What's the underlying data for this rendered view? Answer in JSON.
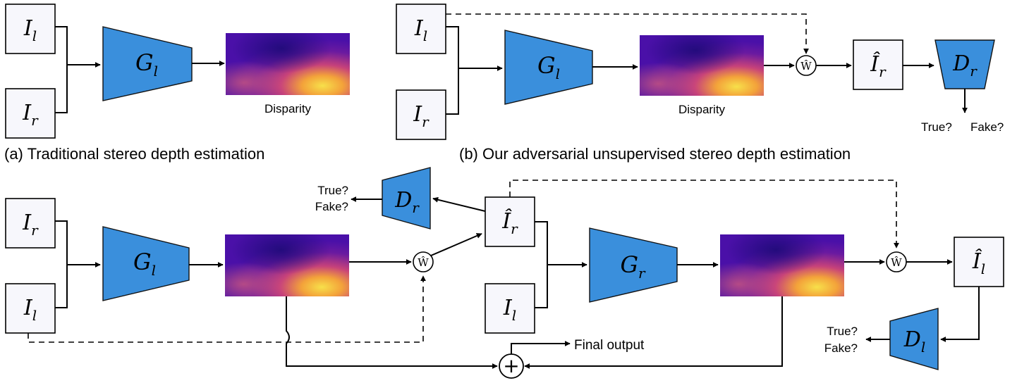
{
  "colors": {
    "network": "#3a8fdc",
    "box_fill": "#f7f7fc"
  },
  "panel_a": {
    "caption": "(a) Traditional stereo depth estimation",
    "input_left": {
      "sym": "I",
      "sub": "l"
    },
    "input_right": {
      "sym": "I",
      "sub": "r"
    },
    "generator": {
      "sym": "G",
      "sub": "l"
    },
    "disparity_label": "Disparity"
  },
  "panel_b": {
    "caption": "(b) Our adversarial unsupervised stereo depth estimation",
    "input_left": {
      "sym": "I",
      "sub": "l"
    },
    "input_right": {
      "sym": "I",
      "sub": "r"
    },
    "generator": {
      "sym": "G",
      "sub": "l"
    },
    "disparity_label": "Disparity",
    "warp": "Ŵ",
    "reconstructed": {
      "sym": "Î",
      "sub": "r"
    },
    "discriminator": {
      "sym": "D",
      "sub": "r"
    },
    "output_true": "True?",
    "output_fake": "Fake?"
  },
  "panel_c": {
    "input_right": {
      "sym": "I",
      "sub": "r"
    },
    "input_left": {
      "sym": "I",
      "sub": "l"
    },
    "generator_left": {
      "sym": "G",
      "sub": "l"
    },
    "warp_1": "Ŵ",
    "reconstructed_right": {
      "sym": "Î",
      "sub": "r"
    },
    "discriminator_right": {
      "sym": "D",
      "sub": "r"
    },
    "disc_right_true": "True?",
    "disc_right_fake": "Fake?",
    "input_left_2": {
      "sym": "I",
      "sub": "l"
    },
    "generator_right": {
      "sym": "G",
      "sub": "r"
    },
    "warp_2": "Ŵ",
    "reconstructed_left": {
      "sym": "Î",
      "sub": "l"
    },
    "discriminator_left": {
      "sym": "D",
      "sub": "l"
    },
    "disc_left_true": "True?",
    "disc_left_fake": "Fake?",
    "final_output": "Final output",
    "sum_symbol": "+"
  }
}
